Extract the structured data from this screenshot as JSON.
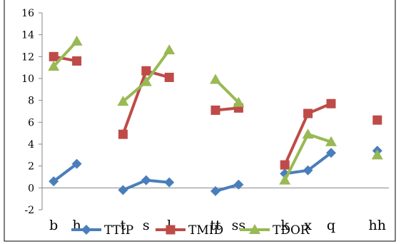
{
  "chart_data": {
    "type": "line",
    "title": "",
    "xlabel": "",
    "ylabel": "",
    "ylim": [
      -2,
      16
    ],
    "yticks": [
      -2,
      0,
      2,
      4,
      6,
      8,
      10,
      12,
      14,
      16
    ],
    "grid": false,
    "legend_position": "bottom",
    "categories": [
      "b",
      "h",
      "",
      "t",
      "s",
      "l",
      "",
      "tt",
      "ss",
      "",
      "k",
      "x",
      "q",
      "",
      "hh"
    ],
    "series": [
      {
        "name": "TTIP",
        "color": "#4a7ebb",
        "marker": "diamond",
        "values": [
          0.6,
          2.2,
          null,
          -0.2,
          0.7,
          0.5,
          null,
          -0.3,
          0.3,
          null,
          1.3,
          1.6,
          3.2,
          null,
          3.4
        ]
      },
      {
        "name": "TMID",
        "color": "#be4b48",
        "marker": "square",
        "values": [
          12.0,
          11.6,
          null,
          4.9,
          10.7,
          10.1,
          null,
          7.1,
          7.3,
          null,
          2.1,
          6.8,
          7.7,
          null,
          6.2
        ]
      },
      {
        "name": "TDOR",
        "color": "#98b954",
        "marker": "triangle",
        "values": [
          11.1,
          13.4,
          null,
          7.9,
          9.7,
          12.6,
          null,
          9.9,
          7.8,
          null,
          0.7,
          4.9,
          4.2,
          null,
          3.0
        ]
      }
    ]
  }
}
